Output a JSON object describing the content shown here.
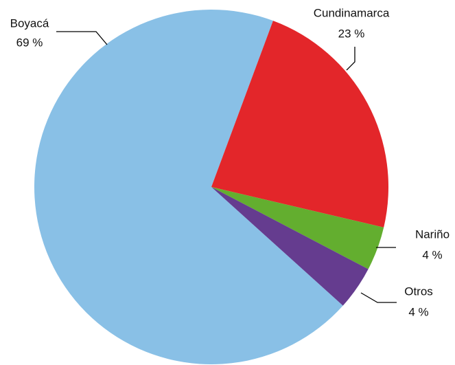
{
  "chart_data": {
    "type": "pie",
    "categories": [
      "Boyacá",
      "Cundinamarca",
      "Nariño",
      "Otros"
    ],
    "values": [
      69,
      23,
      4,
      4
    ],
    "value_labels": [
      "69 %",
      "23 %",
      "4 %",
      "4 %"
    ],
    "colors": [
      "#89c0e6",
      "#e3262a",
      "#63ae2f",
      "#653c8f"
    ]
  }
}
